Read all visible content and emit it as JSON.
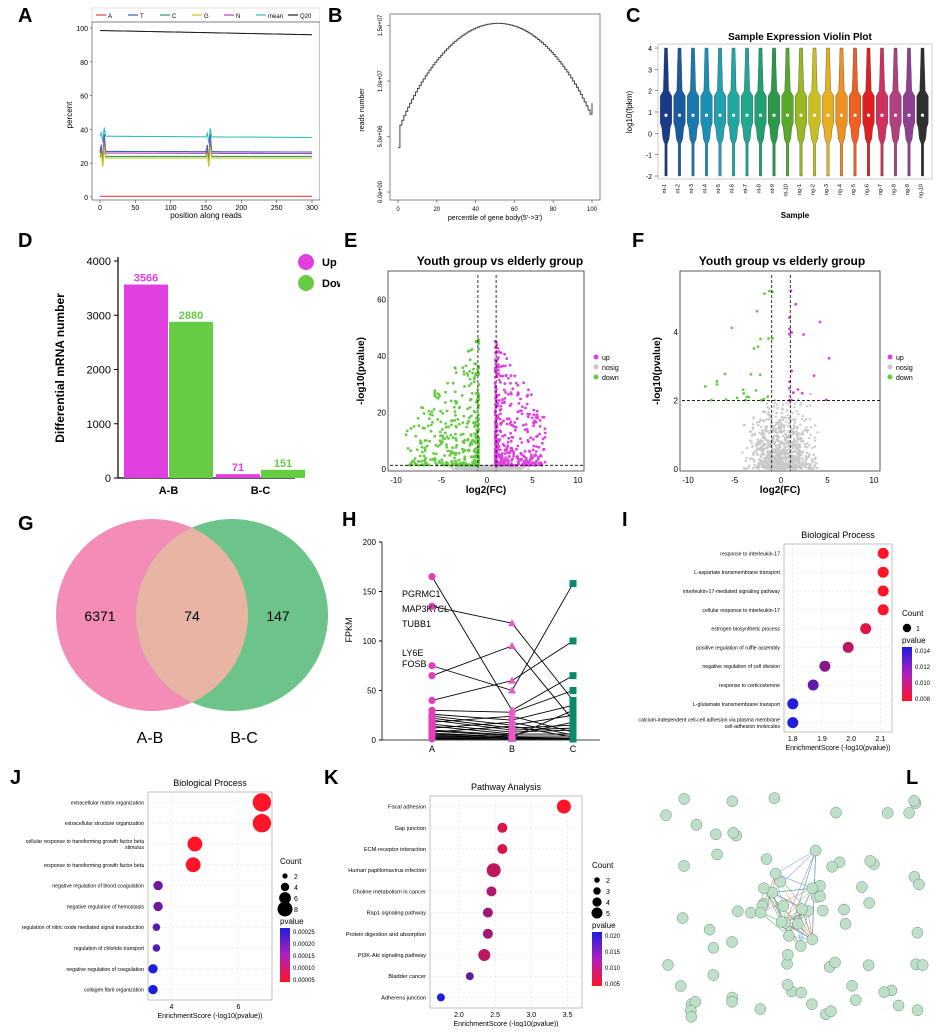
{
  "panels": {
    "A": {
      "label": "A",
      "legend": [
        "A",
        "T",
        "C",
        "G",
        "N",
        "mean",
        "Q20"
      ],
      "ylabel": "percent",
      "xlabel": "position along reads",
      "yticks": [
        "0",
        "20",
        "40",
        "60",
        "80",
        "100"
      ],
      "xticks": [
        "0",
        "50",
        "100",
        "150",
        "200",
        "250",
        "300"
      ]
    },
    "B": {
      "label": "B",
      "ylabel": "reads number",
      "xlabel": "percentile of gene body(5'->3')",
      "yticks": [
        "0.0e+00",
        "5.0e+06",
        "1.0e+07",
        "1.5e+07"
      ],
      "xticks": [
        "0",
        "20",
        "40",
        "60",
        "80",
        "100"
      ]
    },
    "C": {
      "label": "C",
      "title": "Sample Expression Violin Plot",
      "ylabel": "log10(fpkm)",
      "xlabel": "Sample",
      "yticks": [
        "-2",
        "-1",
        "0",
        "1",
        "2",
        "3",
        "4"
      ],
      "samples": [
        "nt-1",
        "nt-2",
        "nt-3",
        "nt-4",
        "nt-5",
        "nt-6",
        "nt-7",
        "nt-8",
        "nt-9",
        "nt-10",
        "ng-1",
        "ng-2",
        "ng-3",
        "ng-4",
        "ng-5",
        "ng-6",
        "ng-7",
        "ng-8",
        "ng-9",
        "ng-10"
      ]
    },
    "D": {
      "label": "D",
      "ylabel": "Differential mRNA number",
      "legend_up": "Up",
      "legend_down": "Down",
      "yticks": [
        "0",
        "1000",
        "2000",
        "3000",
        "4000"
      ]
    },
    "E": {
      "label": "E",
      "title": "Youth group vs elderly group",
      "ylabel": "-log10(pvalue)",
      "xlabel": "log2(FC)",
      "yticks": [
        "0",
        "20",
        "40",
        "60"
      ],
      "xticks": [
        "-10",
        "-5",
        "0",
        "5",
        "10"
      ],
      "legend": [
        "up",
        "nosig",
        "down"
      ]
    },
    "F": {
      "label": "F",
      "title": "Youth group vs elderly group",
      "ylabel": "-log10(pvalue)",
      "xlabel": "log2(FC)",
      "yticks": [
        "0",
        "2",
        "4"
      ],
      "xticks": [
        "-10",
        "-5",
        "0",
        "5",
        "10"
      ],
      "legend": [
        "up",
        "nosig",
        "down"
      ]
    },
    "G": {
      "label": "G",
      "left_only": "6371",
      "overlap": "74",
      "right_only": "147",
      "left_name": "A-B",
      "right_name": "B-C"
    },
    "H": {
      "label": "H",
      "ylabel": "FPKM",
      "yticks": [
        "0",
        "50",
        "100",
        "150",
        "200"
      ],
      "groups": [
        "A",
        "B",
        "C"
      ],
      "genes": [
        "FOSB",
        "LY6E",
        "TUBB1",
        "MAP3K7CL",
        "PGRMC1"
      ]
    },
    "I": {
      "label": "I",
      "title": "Biological Process",
      "xlabel": "EnrichmentScore (-log10(pvalue))",
      "xticks": [
        "1.8",
        "1.9",
        "2.0",
        "2.1"
      ],
      "count_title": "Count",
      "count_values": [
        "1"
      ],
      "pvalue_title": "pvalue",
      "pvalue_ticks": [
        "0.014",
        "0.012",
        "0.010",
        "0.008"
      ],
      "terms": [
        "response to interleukin-17",
        "L-aspartate transmembrane transport",
        "interleukin-17-mediated signaling pathway",
        "cellular response to interleukin-17",
        "estrogen biosynthetic process",
        "positive regulation of ruffle assembly",
        "negative regulation of cell division",
        "response to corticosterone",
        "L-glutamate transmembrane transport",
        "calcium-independent cell-cell adhesion via plasma membrane",
        "cell-adhesion molecules"
      ]
    },
    "J": {
      "label": "J",
      "title": "Biological Process",
      "xlabel": "EnrichmentScore (-log10(pvalue))",
      "xticks": [
        "4",
        "6"
      ],
      "count_title": "Count",
      "count_values": [
        "2",
        "4",
        "6",
        "8"
      ],
      "pvalue_title": "pvalue",
      "pvalue_ticks": [
        "0.00025",
        "0.00020",
        "0.00015",
        "0.00010",
        "0.00005"
      ],
      "terms": [
        "extracellular matrix organization",
        "extracellular structure organization",
        "cellular response to transforming growth factor beta",
        "stimulus",
        "response to transforming growth factor beta",
        "negative regulation of blood coagulation",
        "negative regulation of hemostasis",
        "regulation of nitric oxide mediated signal transduction",
        "regulation of chloride transport",
        "negative regulation of coagulation",
        "collagen fibril organization"
      ]
    },
    "K": {
      "label": "K",
      "title": "Pathway Analysis",
      "xlabel": "EnrichmentScore (-log10(pvalue))",
      "xticks": [
        "2.0",
        "2.5",
        "3.0",
        "3.5"
      ],
      "count_title": "Count",
      "count_values": [
        "2",
        "3",
        "4",
        "5"
      ],
      "pvalue_title": "pvalue",
      "pvalue_ticks": [
        "0.020",
        "0.015",
        "0.010",
        "0.005"
      ],
      "terms": [
        "Focal adhesion",
        "Gap junction",
        "ECM-receptor interaction",
        "Human papillomavirus infection",
        "Choline metabolism in cancer",
        "Rap1 signaling pathway",
        "Protein digestion and absorption",
        "PI3K-Akt signaling pathway",
        "Bladder cancer",
        "Adherens junction"
      ]
    },
    "L": {
      "label": "L"
    }
  },
  "colors": {
    "magenta": "#e040e0",
    "green": "#66cc44",
    "teal": "#0a8a6a",
    "pink_venn": "#f48cb8",
    "green_venn": "#6cc48a",
    "red": "#ff1a1a",
    "blue": "#1a2ad0"
  },
  "chart_data": [
    {
      "id": "D",
      "type": "bar",
      "categories": [
        "A-B",
        "B-C"
      ],
      "series": [
        {
          "name": "Up",
          "values": [
            3566,
            71
          ]
        },
        {
          "name": "Down",
          "values": [
            2880,
            151
          ]
        }
      ],
      "ylabel": "Differential mRNA number",
      "ylim": [
        0,
        4000
      ]
    },
    {
      "id": "I",
      "type": "scatter",
      "terms": [
        "response to interleukin-17",
        "L-aspartate transmembrane transport",
        "interleukin-17-mediated signaling pathway",
        "cellular response to interleukin-17",
        "estrogen biosynthetic process",
        "positive regulation of ruffle assembly",
        "negative regulation of cell division",
        "response to corticosterone",
        "L-glutamate transmembrane transport",
        "calcium-independent cell-cell adhesion via plasma membrane cell-adhesion molecules"
      ],
      "x": [
        2.11,
        2.11,
        2.11,
        2.11,
        2.05,
        1.99,
        1.91,
        1.87,
        1.8,
        1.8
      ],
      "pvalue": [
        0.0078,
        0.0078,
        0.0078,
        0.0078,
        0.0089,
        0.0102,
        0.0121,
        0.0134,
        0.0157,
        0.0157
      ],
      "count": [
        1,
        1,
        1,
        1,
        1,
        1,
        1,
        1,
        1,
        1
      ],
      "xlim": [
        1.77,
        2.14
      ]
    },
    {
      "id": "J",
      "type": "scatter",
      "terms": [
        "extracellular matrix organization",
        "extracellular structure organization",
        "cellular response to transforming growth factor beta stimulus",
        "response to transforming growth factor beta",
        "negative regulation of blood coagulation",
        "negative regulation of hemostasis",
        "regulation of nitric oxide mediated signal transduction",
        "regulation of chloride transport",
        "negative regulation of coagulation",
        "collagen fibril organization"
      ],
      "x": [
        6.7,
        6.7,
        4.7,
        4.65,
        3.6,
        3.6,
        3.55,
        3.55,
        3.45,
        3.45
      ],
      "pvalue": [
        2e-05,
        2e-05,
        2e-05,
        2e-05,
        0.00018,
        0.00018,
        0.00021,
        0.00021,
        0.00027,
        0.00027
      ],
      "count": [
        8,
        8,
        6,
        6,
        3,
        3,
        2,
        2,
        3,
        3
      ],
      "xlim": [
        3.3,
        7.0
      ]
    },
    {
      "id": "K",
      "type": "scatter",
      "terms": [
        "Focal adhesion",
        "Gap junction",
        "ECM-receptor interaction",
        "Human papillomavirus infection",
        "Choline metabolism in cancer",
        "Rap1 signaling pathway",
        "Protein digestion and absorption",
        "PI3K-Akt signaling pathway",
        "Bladder cancer",
        "Adherens junction"
      ],
      "x": [
        3.45,
        2.6,
        2.6,
        2.48,
        2.45,
        2.4,
        2.4,
        2.35,
        2.15,
        1.75
      ],
      "pvalue": [
        0.003,
        0.006,
        0.006,
        0.008,
        0.009,
        0.01,
        0.01,
        0.008,
        0.015,
        0.02
      ],
      "count": [
        5,
        3,
        3,
        5,
        3,
        3,
        3,
        4,
        2,
        2
      ],
      "xlim": [
        1.6,
        3.7
      ]
    }
  ]
}
